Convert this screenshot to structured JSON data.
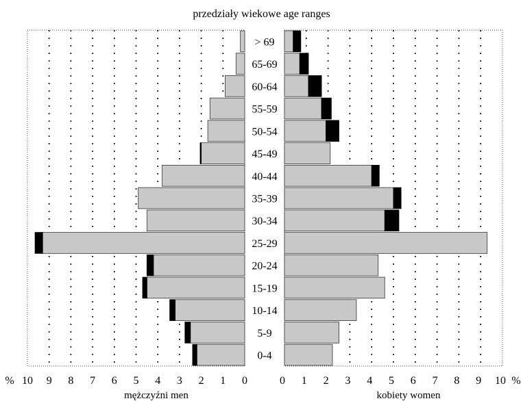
{
  "chart_data": {
    "type": "bar",
    "subtype": "population-pyramid",
    "title": "przedziały wiekowe age ranges",
    "categories": [
      "0-4",
      "5-9",
      "10-14",
      "15-19",
      "20-24",
      "25-29",
      "30-34",
      "35-39",
      "40-44",
      "45-49",
      "50-54",
      "55-59",
      "60-64",
      "65-69",
      "> 69"
    ],
    "left": {
      "label": "mężczyźni men",
      "axis_ticks": [
        "10",
        "9",
        "8",
        "7",
        "6",
        "5",
        "4",
        "3",
        "2",
        "1",
        "0"
      ],
      "axis_unit": "%",
      "xlim": [
        0,
        10
      ],
      "series": [
        {
          "values": [
            2.2,
            2.5,
            3.2,
            4.5,
            4.2,
            9.3,
            4.5,
            4.9,
            3.8,
            2.0,
            1.7,
            1.6,
            0.9,
            0.4,
            0.2
          ],
          "color": "#c8c8c8"
        },
        {
          "values": [
            0.2,
            0.25,
            0.25,
            0.2,
            0.3,
            0.35,
            0.0,
            0.0,
            0.0,
            0.05,
            0.0,
            0.0,
            0.0,
            0.0,
            0.0
          ],
          "color": "#000000"
        }
      ]
    },
    "right": {
      "label": "kobiety women",
      "axis_ticks": [
        "0",
        "1",
        "2",
        "3",
        "4",
        "5",
        "6",
        "7",
        "8",
        "9",
        "10"
      ],
      "axis_unit": "%",
      "xlim": [
        0,
        10
      ],
      "series": [
        {
          "values": [
            2.2,
            2.5,
            3.3,
            4.6,
            4.3,
            9.3,
            4.6,
            5.0,
            4.0,
            2.1,
            1.9,
            1.7,
            1.1,
            0.7,
            0.4
          ],
          "color": "#c8c8c8"
        },
        {
          "values": [
            0.0,
            0.0,
            0.0,
            0.0,
            0.0,
            0.0,
            0.65,
            0.35,
            0.35,
            0.0,
            0.6,
            0.45,
            0.6,
            0.4,
            0.35
          ],
          "color": "#000000"
        }
      ]
    },
    "grid": true
  }
}
